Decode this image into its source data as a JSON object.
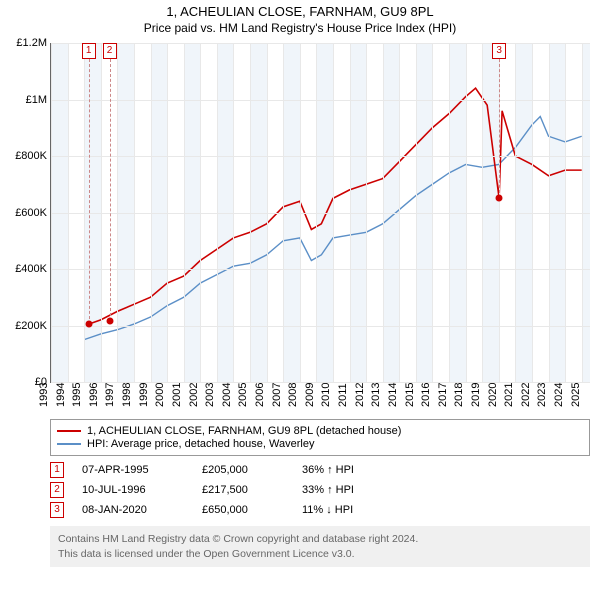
{
  "title1": "1, ACHEULIAN CLOSE, FARNHAM, GU9 8PL",
  "title2": "Price paid vs. HM Land Registry's House Price Index (HPI)",
  "chart": {
    "ylim": [
      0,
      1200000
    ],
    "ytick_step": 200000,
    "ylabels": [
      "£0",
      "£200K",
      "£400K",
      "£600K",
      "£800K",
      "£1M",
      "£1.2M"
    ],
    "xyears": [
      1993,
      1994,
      1995,
      1996,
      1997,
      1998,
      1999,
      2000,
      2001,
      2002,
      2003,
      2004,
      2005,
      2006,
      2007,
      2008,
      2009,
      2010,
      2011,
      2012,
      2013,
      2014,
      2015,
      2016,
      2017,
      2018,
      2019,
      2020,
      2021,
      2022,
      2023,
      2024,
      2025
    ],
    "xlim": [
      1993,
      2025.5
    ],
    "band_years": [
      [
        1993,
        1994
      ],
      [
        1995,
        1996
      ],
      [
        1997,
        1998
      ],
      [
        1999,
        2000
      ],
      [
        2001,
        2002
      ],
      [
        2003,
        2004
      ],
      [
        2005,
        2006
      ],
      [
        2007,
        2008
      ],
      [
        2009,
        2010
      ],
      [
        2011,
        2012
      ],
      [
        2013,
        2014
      ],
      [
        2015,
        2016
      ],
      [
        2017,
        2018
      ],
      [
        2019,
        2020
      ],
      [
        2021,
        2022
      ],
      [
        2023,
        2024
      ],
      [
        2025,
        2025.5
      ]
    ],
    "series_red": {
      "color": "#cc0000",
      "width": 1.6,
      "points": [
        [
          1995.27,
          205000
        ],
        [
          1996,
          220000
        ],
        [
          1997,
          250000
        ],
        [
          1998,
          275000
        ],
        [
          1999,
          300000
        ],
        [
          2000,
          350000
        ],
        [
          2001,
          375000
        ],
        [
          2002,
          430000
        ],
        [
          2003,
          470000
        ],
        [
          2004,
          510000
        ],
        [
          2005,
          530000
        ],
        [
          2006,
          560000
        ],
        [
          2007,
          620000
        ],
        [
          2008,
          640000
        ],
        [
          2008.7,
          540000
        ],
        [
          2009.3,
          560000
        ],
        [
          2010,
          650000
        ],
        [
          2011,
          680000
        ],
        [
          2012,
          700000
        ],
        [
          2013,
          720000
        ],
        [
          2014,
          780000
        ],
        [
          2015,
          840000
        ],
        [
          2016,
          900000
        ],
        [
          2017,
          950000
        ],
        [
          2018,
          1010000
        ],
        [
          2018.6,
          1040000
        ],
        [
          2019.3,
          980000
        ],
        [
          2020.02,
          650000
        ],
        [
          2020.2,
          960000
        ],
        [
          2021,
          800000
        ],
        [
          2022,
          770000
        ],
        [
          2023,
          730000
        ],
        [
          2024,
          750000
        ],
        [
          2025,
          750000
        ]
      ]
    },
    "series_blue": {
      "color": "#5b8fc7",
      "width": 1.4,
      "points": [
        [
          1995.0,
          150000
        ],
        [
          1996,
          170000
        ],
        [
          1997,
          185000
        ],
        [
          1998,
          205000
        ],
        [
          1999,
          230000
        ],
        [
          2000,
          270000
        ],
        [
          2001,
          300000
        ],
        [
          2002,
          350000
        ],
        [
          2003,
          380000
        ],
        [
          2004,
          410000
        ],
        [
          2005,
          420000
        ],
        [
          2006,
          450000
        ],
        [
          2007,
          500000
        ],
        [
          2008,
          510000
        ],
        [
          2008.7,
          430000
        ],
        [
          2009.3,
          450000
        ],
        [
          2010,
          510000
        ],
        [
          2011,
          520000
        ],
        [
          2012,
          530000
        ],
        [
          2013,
          560000
        ],
        [
          2014,
          610000
        ],
        [
          2015,
          660000
        ],
        [
          2016,
          700000
        ],
        [
          2017,
          740000
        ],
        [
          2018,
          770000
        ],
        [
          2019,
          760000
        ],
        [
          2020,
          770000
        ],
        [
          2021,
          830000
        ],
        [
          2022,
          910000
        ],
        [
          2022.5,
          940000
        ],
        [
          2023,
          870000
        ],
        [
          2024,
          850000
        ],
        [
          2025,
          870000
        ]
      ]
    },
    "markers": [
      {
        "n": "1",
        "year": 1995.27,
        "value": 205000
      },
      {
        "n": "2",
        "year": 1996.53,
        "value": 217500
      },
      {
        "n": "3",
        "year": 2020.02,
        "value": 650000
      }
    ]
  },
  "legend": [
    {
      "color": "#cc0000",
      "label": "1, ACHEULIAN CLOSE, FARNHAM, GU9 8PL (detached house)"
    },
    {
      "color": "#5b8fc7",
      "label": "HPI: Average price, detached house, Waverley"
    }
  ],
  "sales": [
    {
      "n": "1",
      "date": "07-APR-1995",
      "price": "£205,000",
      "diff": "36% ↑ HPI"
    },
    {
      "n": "2",
      "date": "10-JUL-1996",
      "price": "£217,500",
      "diff": "33% ↑ HPI"
    },
    {
      "n": "3",
      "date": "08-JAN-2020",
      "price": "£650,000",
      "diff": "11% ↓ HPI"
    }
  ],
  "footer1": "Contains HM Land Registry data © Crown copyright and database right 2024.",
  "footer2": "This data is licensed under the Open Government Licence v3.0."
}
